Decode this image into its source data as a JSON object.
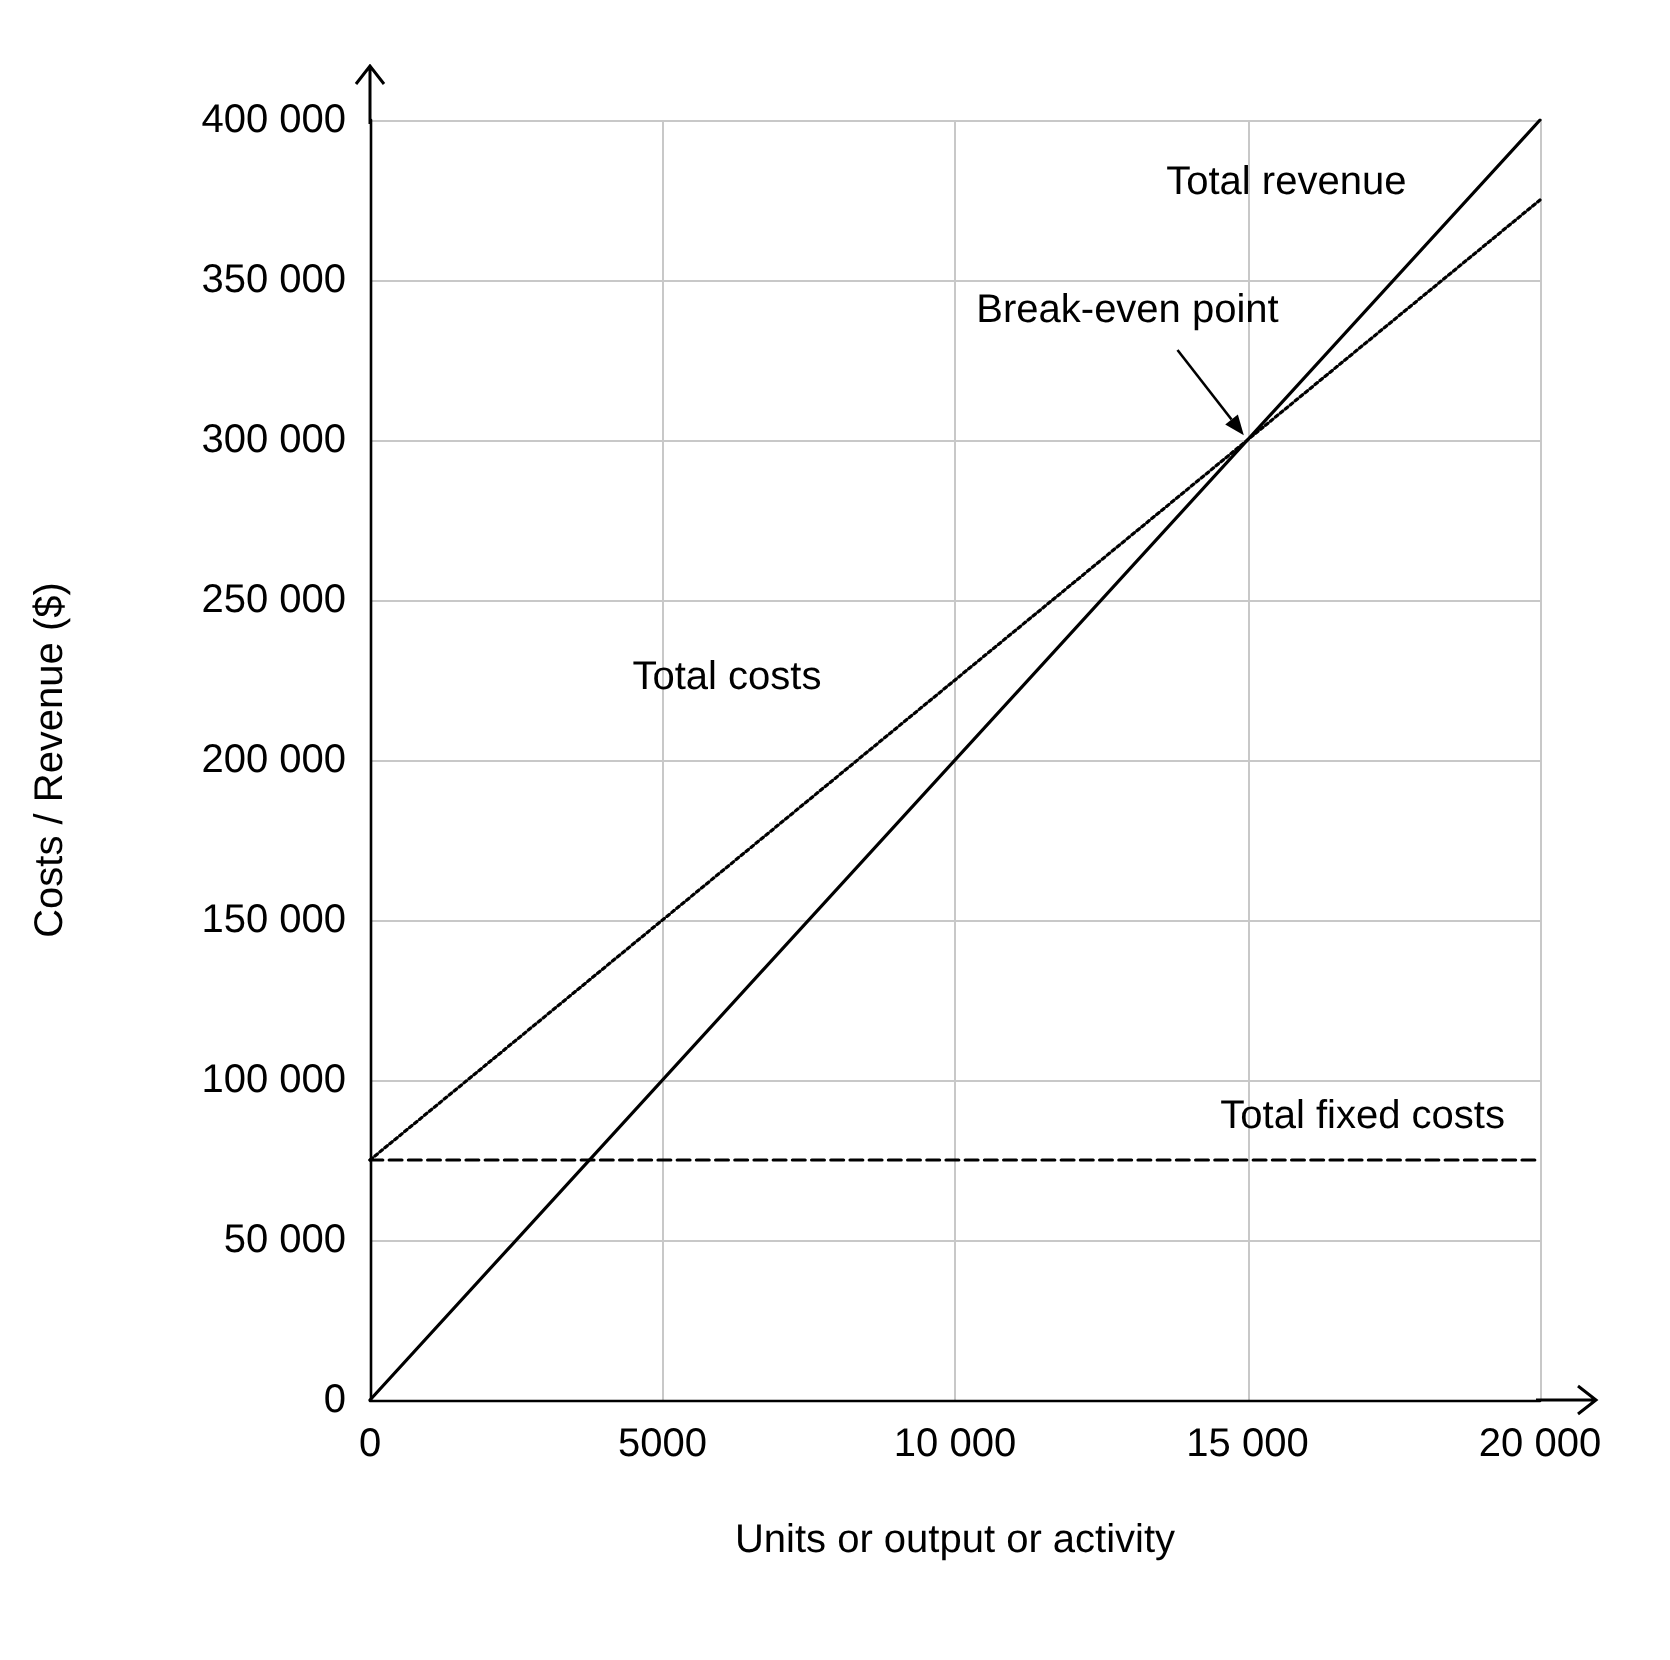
{
  "chart_data": {
    "type": "line",
    "xlabel": "Units or output or activity",
    "ylabel": "Costs / Revenue ($)",
    "xlim": [
      0,
      20000
    ],
    "ylim": [
      0,
      400000
    ],
    "x": [
      0,
      20000
    ],
    "xticks": [
      0,
      5000,
      {
        "value": 10000,
        "label": "10 000"
      },
      {
        "value": 15000,
        "label": "15 000"
      },
      {
        "value": 20000,
        "label": "20 000"
      }
    ],
    "yticks": [
      0,
      {
        "value": 50000,
        "label": "50 000"
      },
      {
        "value": 100000,
        "label": "100 000"
      },
      {
        "value": 150000,
        "label": "150 000"
      },
      {
        "value": 200000,
        "label": "200 000"
      },
      {
        "value": 250000,
        "label": "250 000"
      },
      {
        "value": 300000,
        "label": "300 000"
      },
      {
        "value": 350000,
        "label": "350 000"
      },
      {
        "value": 400000,
        "label": "400 000"
      }
    ],
    "series": [
      {
        "name": "Total revenue",
        "color": "#000000",
        "values": [
          0,
          400000
        ],
        "line_style": "solid"
      },
      {
        "name": "Total costs",
        "color": "#000000",
        "values": [
          75000,
          375000
        ],
        "line_style": "dotted"
      },
      {
        "name": "Total fixed costs",
        "color": "#000000",
        "values": [
          75000,
          75000
        ],
        "line_style": "dashed"
      }
    ],
    "annotations": [
      {
        "text": "Break-even point",
        "x": 15000,
        "y": 300000
      }
    ],
    "grid": true,
    "legend": false,
    "marker": "none"
  }
}
